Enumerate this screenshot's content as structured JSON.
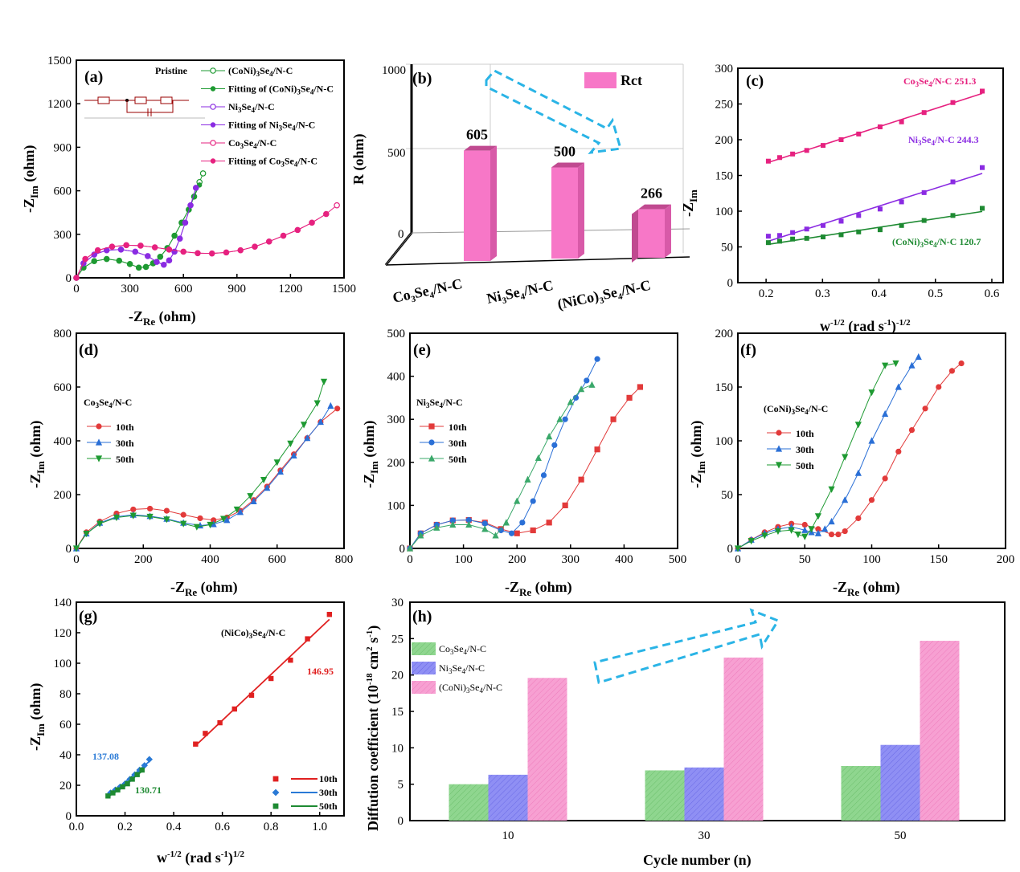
{
  "chart_data": [
    {
      "panel": "(a)",
      "type": "scatter",
      "xlabel": "-Z",
      "xsub": "Re",
      "xunit": " (ohm)",
      "ylabel": "-Z",
      "ysub": "Im",
      "yunit": " (ohm)",
      "xlim": [
        0,
        1500
      ],
      "ylim": [
        0,
        1500
      ],
      "xticks": [
        0,
        300,
        600,
        900,
        1200,
        1500
      ],
      "yticks": [
        0,
        300,
        600,
        900,
        1200,
        1500
      ],
      "legend_title": "Pristine",
      "series": [
        {
          "name": "(CoNi)3Se4/N-C",
          "color": "#1e9a32",
          "marker": "circle-open",
          "x": [
            0,
            40,
            100,
            170,
            240,
            300,
            350,
            390,
            430,
            470,
            510,
            550,
            590,
            630,
            660,
            690,
            710
          ],
          "y": [
            0,
            70,
            115,
            130,
            118,
            95,
            70,
            75,
            100,
            145,
            205,
            290,
            380,
            470,
            560,
            660,
            720
          ]
        },
        {
          "name": "Fitting of (CoNi)3Se4/N-C",
          "color": "#1e9a32",
          "marker": "circle",
          "x": [
            0,
            40,
            100,
            170,
            240,
            300,
            350,
            390,
            430,
            470,
            510,
            550,
            590,
            630,
            660,
            690
          ],
          "y": [
            0,
            70,
            115,
            130,
            118,
            95,
            70,
            75,
            100,
            145,
            205,
            290,
            380,
            470,
            560,
            640
          ]
        },
        {
          "name": "Ni3Se4/N-C",
          "color": "#8a2be2",
          "marker": "circle-open",
          "x": [
            0,
            40,
            100,
            170,
            250,
            330,
            400,
            450,
            490,
            520,
            550,
            580,
            610,
            640,
            670
          ],
          "y": [
            0,
            100,
            160,
            190,
            195,
            180,
            150,
            110,
            90,
            120,
            180,
            270,
            380,
            500,
            620
          ]
        },
        {
          "name": "Fitting of Ni3Se4/N-C",
          "color": "#8a2be2",
          "marker": "circle",
          "x": [
            0,
            40,
            100,
            170,
            250,
            330,
            400,
            450,
            490,
            520,
            550,
            580,
            610,
            640,
            670
          ],
          "y": [
            0,
            100,
            160,
            190,
            195,
            180,
            150,
            110,
            90,
            120,
            180,
            270,
            380,
            500,
            620
          ]
        },
        {
          "name": "Co3Se4/N-C",
          "color": "#e6217f",
          "marker": "circle-open",
          "x": [
            0,
            50,
            120,
            200,
            280,
            360,
            440,
            520,
            600,
            680,
            760,
            840,
            920,
            1000,
            1080,
            1160,
            1240,
            1320,
            1400,
            1460
          ],
          "y": [
            0,
            130,
            190,
            215,
            225,
            222,
            210,
            195,
            180,
            170,
            168,
            175,
            190,
            215,
            250,
            290,
            330,
            380,
            440,
            500
          ]
        },
        {
          "name": "Fitting of Co3Se4/N-C",
          "color": "#e6217f",
          "marker": "circle",
          "x": [
            0,
            50,
            120,
            200,
            280,
            360,
            440,
            520,
            600,
            680,
            760,
            840,
            920,
            1000,
            1080,
            1160,
            1240,
            1320,
            1400
          ],
          "y": [
            0,
            130,
            190,
            215,
            225,
            222,
            210,
            195,
            180,
            170,
            168,
            175,
            190,
            215,
            250,
            290,
            330,
            380,
            440
          ]
        }
      ]
    },
    {
      "panel": "(b)",
      "type": "bar",
      "ylabel": "R (ohm)",
      "ylim": [
        0,
        1000
      ],
      "yticks": [
        0,
        500,
        1000
      ],
      "categories": [
        "Co3Se4/N-C",
        "Ni3Se4/N-C",
        "(NiCo)3Se4/N-C"
      ],
      "values": [
        605,
        500,
        266
      ],
      "value_labels": [
        "605",
        "500",
        "266"
      ],
      "legend": "Rct",
      "color": "#f777c7"
    },
    {
      "panel": "(c)",
      "type": "line",
      "xlabel": "w",
      "xsup": "-1/2",
      "xunit": " (rad s",
      "ylabel": "-Z",
      "ysub": "Im",
      "xlim": [
        0.15,
        0.62
      ],
      "ylim": [
        0,
        300
      ],
      "xticks": [
        0.2,
        0.3,
        0.4,
        0.5,
        0.6
      ],
      "yticks": [
        0,
        50,
        100,
        150,
        200,
        250,
        300
      ],
      "series": [
        {
          "name": "Co3Se4/N-C",
          "slope": "251.3",
          "color": "#e6217f",
          "x": [
            0.204,
            0.224,
            0.247,
            0.272,
            0.301,
            0.333,
            0.364,
            0.402,
            0.44,
            0.48,
            0.531,
            0.583
          ],
          "y": [
            170,
            175,
            180,
            185,
            192,
            200,
            208,
            218,
            225,
            238,
            252,
            268
          ]
        },
        {
          "name": "Ni3Se4/N-C",
          "slope": "244.3",
          "color": "#8a2be2",
          "x": [
            0.204,
            0.224,
            0.247,
            0.272,
            0.301,
            0.333,
            0.364,
            0.402,
            0.44,
            0.48,
            0.531,
            0.583
          ],
          "y": [
            65,
            66,
            70,
            75,
            80,
            86,
            94,
            103,
            113,
            126,
            141,
            161
          ]
        },
        {
          "name": "(CoNi)3Se4/N-C",
          "slope": "120.7",
          "color": "#1e8a32",
          "x": [
            0.204,
            0.224,
            0.247,
            0.272,
            0.301,
            0.333,
            0.364,
            0.402,
            0.44,
            0.48,
            0.531,
            0.583
          ],
          "y": [
            56,
            58,
            61,
            62,
            64,
            67,
            71,
            74,
            80,
            87,
            94,
            104
          ]
        }
      ]
    },
    {
      "panel": "(d)",
      "type": "scatter",
      "title": "Co3Se4/N-C",
      "xlim": [
        0,
        800
      ],
      "ylim": [
        0,
        800
      ],
      "xticks": [
        0,
        200,
        400,
        600,
        800
      ],
      "yticks": [
        0,
        200,
        400,
        600,
        800
      ],
      "series": [
        {
          "name": "10th",
          "color": "#e23a3a",
          "marker": "circle",
          "x": [
            0,
            30,
            70,
            120,
            170,
            220,
            270,
            320,
            370,
            410,
            450,
            490,
            530,
            570,
            610,
            650,
            690,
            730,
            780
          ],
          "y": [
            0,
            60,
            100,
            130,
            145,
            148,
            140,
            125,
            112,
            105,
            115,
            140,
            180,
            230,
            290,
            350,
            410,
            470,
            520
          ]
        },
        {
          "name": "30th",
          "color": "#2a6fd6",
          "marker": "triangle",
          "x": [
            0,
            30,
            70,
            120,
            170,
            220,
            270,
            320,
            370,
            410,
            450,
            490,
            530,
            570,
            610,
            650,
            690,
            730,
            760
          ],
          "y": [
            0,
            55,
            95,
            118,
            125,
            120,
            110,
            95,
            85,
            90,
            105,
            135,
            175,
            225,
            285,
            345,
            410,
            470,
            530
          ]
        },
        {
          "name": "50th",
          "color": "#1e9a32",
          "marker": "triangle-down",
          "x": [
            0,
            30,
            70,
            120,
            170,
            220,
            270,
            320,
            360,
            400,
            440,
            480,
            520,
            560,
            600,
            640,
            680,
            720,
            740
          ],
          "y": [
            0,
            55,
            92,
            115,
            122,
            118,
            108,
            92,
            80,
            88,
            110,
            145,
            195,
            255,
            320,
            390,
            460,
            540,
            620
          ]
        }
      ]
    },
    {
      "panel": "(e)",
      "type": "scatter",
      "title": "Ni3Se4/N-C",
      "xlim": [
        0,
        500
      ],
      "ylim": [
        0,
        500
      ],
      "xticks": [
        0,
        100,
        200,
        300,
        400,
        500
      ],
      "yticks": [
        0,
        100,
        200,
        300,
        400,
        500
      ],
      "series": [
        {
          "name": "10th",
          "color": "#e23a3a",
          "marker": "square",
          "x": [
            0,
            20,
            50,
            80,
            110,
            140,
            170,
            200,
            230,
            260,
            290,
            320,
            350,
            380,
            410,
            430
          ],
          "y": [
            0,
            35,
            55,
            65,
            66,
            60,
            45,
            35,
            42,
            60,
            100,
            160,
            230,
            300,
            350,
            375
          ]
        },
        {
          "name": "30th",
          "color": "#2a6fd6",
          "marker": "circle",
          "x": [
            0,
            20,
            50,
            80,
            110,
            140,
            170,
            190,
            210,
            230,
            250,
            270,
            290,
            310,
            330,
            350
          ],
          "y": [
            0,
            35,
            55,
            65,
            66,
            58,
            42,
            35,
            60,
            110,
            170,
            240,
            300,
            350,
            390,
            440
          ]
        },
        {
          "name": "50th",
          "color": "#3aa86a",
          "marker": "triangle",
          "x": [
            0,
            20,
            50,
            80,
            110,
            140,
            160,
            180,
            200,
            220,
            240,
            260,
            280,
            300,
            320,
            340
          ],
          "y": [
            0,
            30,
            48,
            55,
            55,
            45,
            30,
            60,
            110,
            160,
            210,
            260,
            300,
            340,
            370,
            380
          ]
        }
      ]
    },
    {
      "panel": "(f)",
      "type": "scatter",
      "title": "(CoNi)3Se4/N-C",
      "xlim": [
        0,
        200
      ],
      "ylim": [
        0,
        200
      ],
      "xticks": [
        0,
        50,
        100,
        150,
        200
      ],
      "yticks": [
        0,
        50,
        100,
        150,
        200
      ],
      "series": [
        {
          "name": "10th",
          "color": "#e23a3a",
          "marker": "circle",
          "x": [
            0,
            10,
            20,
            30,
            40,
            50,
            60,
            70,
            75,
            80,
            90,
            100,
            110,
            120,
            130,
            140,
            150,
            160,
            167
          ],
          "y": [
            0,
            8,
            15,
            20,
            23,
            22,
            18,
            13,
            13,
            16,
            28,
            45,
            65,
            90,
            110,
            130,
            150,
            165,
            172
          ]
        },
        {
          "name": "30th",
          "color": "#2a6fd6",
          "marker": "triangle",
          "x": [
            0,
            10,
            20,
            30,
            40,
            50,
            55,
            60,
            65,
            70,
            80,
            90,
            100,
            110,
            120,
            130,
            135
          ],
          "y": [
            0,
            8,
            14,
            18,
            20,
            17,
            15,
            14,
            18,
            25,
            45,
            70,
            100,
            125,
            150,
            170,
            178
          ]
        },
        {
          "name": "50th",
          "color": "#1e9a32",
          "marker": "triangle-down",
          "x": [
            0,
            10,
            20,
            30,
            40,
            45,
            50,
            55,
            60,
            70,
            80,
            90,
            100,
            110,
            118
          ],
          "y": [
            0,
            7,
            12,
            16,
            17,
            13,
            11,
            18,
            30,
            55,
            85,
            115,
            145,
            170,
            172
          ]
        }
      ]
    },
    {
      "panel": "(g)",
      "type": "line",
      "title": "(NiCo)3Se4/N-C",
      "xlabel": "w",
      "ylabel": "-Z",
      "ysub": "Im",
      "xlim": [
        0,
        1.1
      ],
      "ylim": [
        0,
        140
      ],
      "xticks": [
        0.0,
        0.2,
        0.4,
        0.6,
        0.8,
        1.0
      ],
      "yticks": [
        0,
        20,
        40,
        60,
        80,
        100,
        120,
        140
      ],
      "series": [
        {
          "name": "10th",
          "slope": "146.95",
          "color": "#e02020",
          "marker": "square",
          "x": [
            0.49,
            0.53,
            0.59,
            0.65,
            0.72,
            0.8,
            0.88,
            0.95,
            1.04
          ],
          "y": [
            47,
            54,
            61,
            70,
            79,
            90,
            102,
            116,
            132
          ]
        },
        {
          "name": "30th",
          "slope": "137.08",
          "color": "#2a7ad6",
          "marker": "diamond",
          "x": [
            0.14,
            0.16,
            0.18,
            0.2,
            0.22,
            0.24,
            0.26,
            0.28,
            0.3
          ],
          "y": [
            15,
            17,
            19,
            21,
            24,
            27,
            30,
            33,
            37
          ]
        },
        {
          "name": "50th",
          "slope": "130.71",
          "color": "#1e8a32",
          "marker": "square",
          "x": [
            0.13,
            0.15,
            0.17,
            0.19,
            0.21,
            0.23,
            0.25,
            0.27
          ],
          "y": [
            13,
            15,
            17,
            19,
            21,
            24,
            27,
            30
          ]
        }
      ]
    },
    {
      "panel": "(h)",
      "type": "bar",
      "xlabel": "Cycle number (n)",
      "ylabel": "Diffution coefficient (10",
      "ylim": [
        0,
        30
      ],
      "yticks": [
        0,
        5,
        10,
        15,
        20,
        25,
        30
      ],
      "categories": [
        "10",
        "30",
        "50"
      ],
      "series": [
        {
          "name": "Co3Se4/N-C",
          "color": "#7ed07e",
          "values": [
            5.0,
            6.9,
            7.5
          ]
        },
        {
          "name": "Ni3Se4/N-C",
          "color": "#8080f0",
          "values": [
            6.3,
            7.3,
            10.4
          ]
        },
        {
          "name": "(CoNi)3Se4/N-C",
          "color": "#f58cc8",
          "values": [
            19.6,
            22.4,
            24.7
          ]
        }
      ]
    }
  ],
  "texts": {
    "a_label": "(a)",
    "b_label": "(b)",
    "c_label": "(c)",
    "d_label": "(d)",
    "e_label": "(e)",
    "f_label": "(f)",
    "g_label": "(g)",
    "h_label": "(h)",
    "ohm": " (ohm)",
    "Z": "-Z",
    "Re": "Re",
    "Im": "Im",
    "b_ylabel": "R (ohm)",
    "b_legend": "Rct",
    "b_cat1": "Co",
    "b_cat2": "Ni",
    "b_cat3": "(NiCo)",
    "Se": "Se",
    "NC": "/N-C",
    "sub3": "3",
    "sub4": "4",
    "c_x": "w",
    "c_xsup": "-1/2",
    "c_xmid": " (rad s",
    "c_xsup2": "-1",
    "c_xend": ")",
    "c_xsup3": "-1/2",
    "g_x": "w",
    "g_xsup": "-1/2",
    "g_xmid": " (rad s",
    "g_xsup2": "-1",
    "g_xend": ")",
    "g_xsup3": "1/2",
    "pristine": "Pristine",
    "leg_a1": "(CoNi)",
    "leg_fit": "Fitting of ",
    "h_xlabel": "Cycle number (n)",
    "h_ylabel1": "Diffution coefficient (10",
    "h_sup1": "-18",
    "h_ylabel2": " cm",
    "h_sup2": "2",
    "h_ylabel3": " s",
    "h_sup3": "-1",
    "h_ylabel4": ")"
  }
}
